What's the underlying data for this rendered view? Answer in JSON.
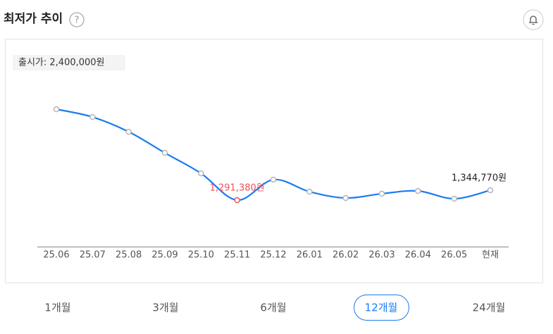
{
  "header": {
    "title": "최저가 추이"
  },
  "chart_data": {
    "type": "line",
    "annotation": "출시가: 2,400,000원",
    "categories": [
      "25.06",
      "25.07",
      "25.08",
      "25.09",
      "25.10",
      "25.11",
      "25.12",
      "26.01",
      "26.02",
      "26.03",
      "26.04",
      "26.05",
      "현재"
    ],
    "values": [
      1783000,
      1741000,
      1661000,
      1547000,
      1436000,
      1291380,
      1402000,
      1337000,
      1303000,
      1326000,
      1341000,
      1299000,
      1344770
    ],
    "value_labels": [
      null,
      null,
      null,
      null,
      null,
      "1,291,380원",
      null,
      null,
      null,
      null,
      null,
      null,
      "1,344,770원"
    ],
    "color": "#1a7cf0",
    "highlight_color": "#f0505a"
  },
  "period_tabs": {
    "options": [
      "1개월",
      "3개월",
      "6개월",
      "12개월",
      "24개월"
    ],
    "selected": 3
  }
}
